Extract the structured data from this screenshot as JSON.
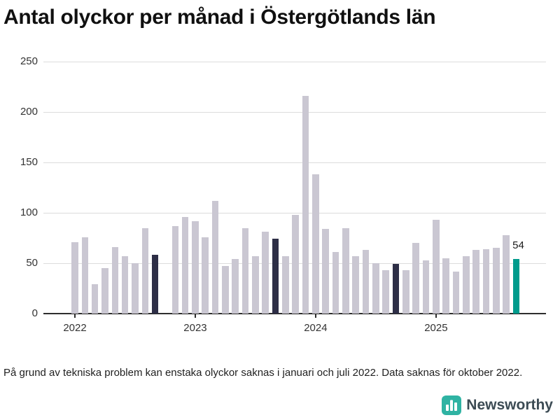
{
  "title": "Antal olyckor per månad i Östergötlands län",
  "footnote": "På grund av tekniska problem kan enstaka olyckor saknas i januari och juli 2022. Data saknas för oktober 2022.",
  "branding": {
    "name": "Newsworthy"
  },
  "colors": {
    "bar": "#cac7d2",
    "highlight": "#2d2e46",
    "current": "#009b8c",
    "grid": "#dcdcdc",
    "axis": "#2e2e2e",
    "logo": "#2fb3a3"
  },
  "chart_data": {
    "type": "bar",
    "title": "Antal olyckor per månad i Östergötlands län",
    "xlabel": "",
    "ylabel": "",
    "x_start": "2022-01",
    "x_unit": "month",
    "missing_months": [
      "2022-10"
    ],
    "values": [
      71,
      76,
      29,
      45,
      66,
      57,
      50,
      85,
      58,
      null,
      87,
      96,
      92,
      76,
      112,
      47,
      54,
      85,
      57,
      81,
      74,
      57,
      98,
      216,
      138,
      84,
      61,
      85,
      57,
      63,
      50,
      43,
      49,
      43,
      70,
      53,
      93,
      55,
      42,
      57,
      63,
      64,
      65,
      78,
      54
    ],
    "highlight_indices": [
      8,
      20,
      32
    ],
    "current_index": 44,
    "last_value_label": "54",
    "ylim": [
      0,
      250
    ],
    "yticks": [
      0,
      50,
      100,
      150,
      200,
      250
    ],
    "year_labels": [
      {
        "label": "2022",
        "index": 0
      },
      {
        "label": "2023",
        "index": 12
      },
      {
        "label": "2024",
        "index": 24
      },
      {
        "label": "2025",
        "index": 36
      }
    ],
    "grid": true,
    "legend": "none"
  }
}
